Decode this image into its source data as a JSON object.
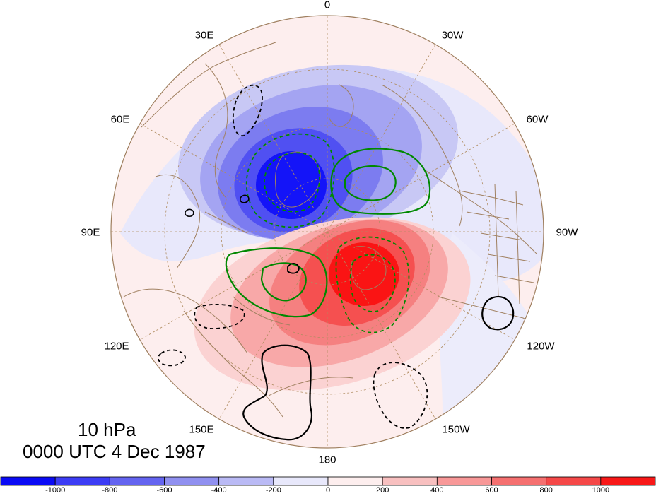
{
  "map": {
    "title_level": "10 hPa",
    "title_time": "0000 UTC 4 Dec 1987",
    "longitude_labels": {
      "lon_0": "0",
      "lon_30w": "30W",
      "lon_60w": "60W",
      "lon_90w": "90W",
      "lon_120w": "120W",
      "lon_150w": "150W",
      "lon_180": "180",
      "lon_150e": "150E",
      "lon_120e": "120E",
      "lon_90e": "90E",
      "lon_60e": "60E",
      "lon_30e": "30E"
    },
    "projection": "polar stereographic, north pole centered",
    "colors": {
      "negative_strong": "#0000ff",
      "positive_strong": "#ff0000",
      "coastline": "#a08060",
      "grid": "#a08060",
      "contour_green": "#008800",
      "contour_black": "#000000"
    }
  },
  "colorbar": {
    "colors": [
      "#0a0af5",
      "#3c3cf5",
      "#6464f0",
      "#9090f0",
      "#babaf5",
      "#e8e8fb",
      "#fdeeee",
      "#f8c0c0",
      "#f89898",
      "#f57070",
      "#f54848",
      "#f81818"
    ],
    "labels": [
      "-1000",
      "-800",
      "-600",
      "-400",
      "-200",
      "0",
      "200",
      "400",
      "600",
      "800",
      "1000"
    ]
  }
}
